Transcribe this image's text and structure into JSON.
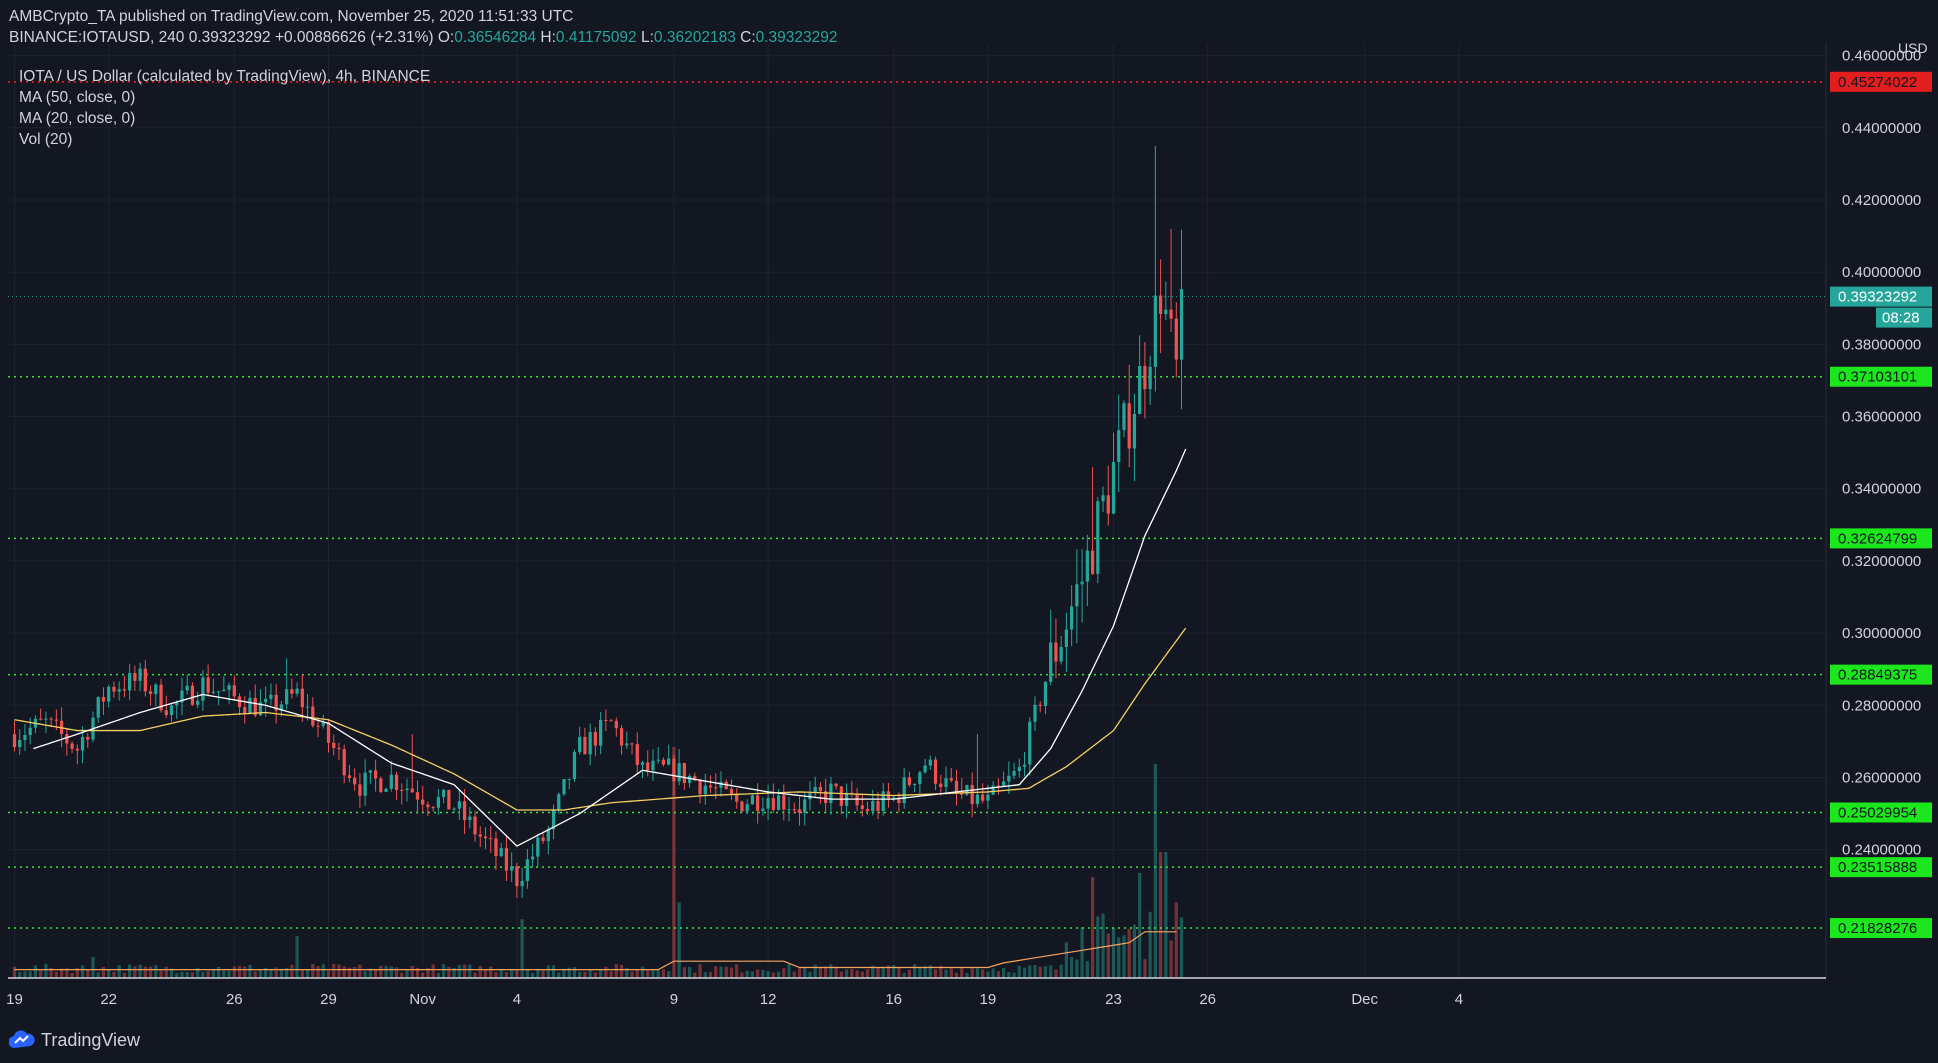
{
  "header": {
    "publisher": "AMBCrypto_TA",
    "published_text": "published on TradingView.com, November 25, 2020 11:51:33 UTC",
    "symbol": "BINANCE:IOTAUSD, 240",
    "change": "0.39323292 +0.00886626 (+2.31%)",
    "o_label": "O:",
    "o": "0.36546284",
    "h_label": "H:",
    "h": "0.41175092",
    "l_label": "L:",
    "l": "0.36202183",
    "c_label": "C:",
    "c": "0.39323292"
  },
  "legend": {
    "title": "IOTA / US Dollar (calculated by TradingView), 4h, BINANCE",
    "ma50": "MA (50, close, 0)",
    "ma20": "MA (20, close, 0)",
    "vol": "Vol (20)"
  },
  "axis": {
    "currency": "USD",
    "countdown": "08:28"
  },
  "footer": {
    "brand": "TradingView"
  },
  "colors": {
    "background": "#131722",
    "up": "#26a69a",
    "down": "#ef5350",
    "ma20": "#ffffff",
    "ma50": "#f5d061",
    "support_line": "#3ee13e",
    "resistance_line": "#ff1f1f",
    "grid": "#1e2230",
    "text": "#d1d4dc"
  },
  "chart_data": {
    "type": "candlestick",
    "title": "IOTA / US Dollar (calculated by TradingView), 4h, BINANCE",
    "y_axis": {
      "min": 0.205,
      "max": 0.461,
      "ticks": [
        "0.46000000",
        "0.44000000",
        "0.42000000",
        "0.40000000",
        "0.38000000",
        "0.36000000",
        "0.34000000",
        "0.32000000",
        "0.30000000",
        "0.28000000",
        "0.26000000",
        "0.24000000"
      ]
    },
    "x_axis": {
      "labels": [
        {
          "text": "19",
          "day": 0
        },
        {
          "text": "22",
          "day": 3
        },
        {
          "text": "26",
          "day": 7
        },
        {
          "text": "29",
          "day": 10
        },
        {
          "text": "Nov",
          "day": 13
        },
        {
          "text": "4",
          "day": 16
        },
        {
          "text": "9",
          "day": 21
        },
        {
          "text": "12",
          "day": 24
        },
        {
          "text": "16",
          "day": 28
        },
        {
          "text": "19",
          "day": 31
        },
        {
          "text": "23",
          "day": 35
        },
        {
          "text": "26",
          "day": 38
        },
        {
          "text": "Dec",
          "day": 43
        },
        {
          "text": "4",
          "day": 46
        }
      ],
      "first_day": "2020-10-19",
      "last_day_shown": "2020-12-05"
    },
    "horizontal_levels": [
      {
        "value": 0.45274022,
        "label": "0.45274022",
        "color": "#ff1f1f",
        "label_bg": "#e31e1e",
        "label_partially_hidden": true
      },
      {
        "value": 0.37103101,
        "label": "0.37103101",
        "color": "#3ee13e",
        "label_bg": "#1ce61c"
      },
      {
        "value": 0.32624799,
        "label": "0.32624799",
        "color": "#3ee13e",
        "label_bg": "#1ce61c"
      },
      {
        "value": 0.28849375,
        "label": "0.28849375",
        "color": "#3ee13e",
        "label_bg": "#1ce61c"
      },
      {
        "value": 0.25029954,
        "label": "0.25029954",
        "color": "#3ee13e",
        "label_bg": "#1ce61c"
      },
      {
        "value": 0.23515888,
        "label": "0.23515888",
        "color": "#3ee13e",
        "label_bg": "#1ce61c"
      },
      {
        "value": 0.21828276,
        "label": "0.21828276",
        "color": "#3ee13e",
        "label_bg": "#1ce61c"
      }
    ],
    "last_price": {
      "value": 0.39323292,
      "label": "0.39323292"
    },
    "close_anchors": [
      [
        0,
        0.272
      ],
      [
        1,
        0.275
      ],
      [
        2,
        0.268
      ],
      [
        3,
        0.285
      ],
      [
        4,
        0.287
      ],
      [
        5,
        0.279
      ],
      [
        6,
        0.286
      ],
      [
        7,
        0.282
      ],
      [
        8,
        0.279
      ],
      [
        9,
        0.283
      ],
      [
        10,
        0.27
      ],
      [
        11,
        0.258
      ],
      [
        12,
        0.26
      ],
      [
        13,
        0.255
      ],
      [
        14,
        0.252
      ],
      [
        15,
        0.242
      ],
      [
        16,
        0.232
      ],
      [
        17,
        0.245
      ],
      [
        18,
        0.268
      ],
      [
        19,
        0.275
      ],
      [
        20,
        0.262
      ],
      [
        21,
        0.262
      ],
      [
        22,
        0.258
      ],
      [
        23,
        0.253
      ],
      [
        24,
        0.255
      ],
      [
        25,
        0.252
      ],
      [
        26,
        0.256
      ],
      [
        27,
        0.251
      ],
      [
        28,
        0.254
      ],
      [
        29,
        0.264
      ],
      [
        30,
        0.255
      ],
      [
        31,
        0.253
      ],
      [
        32,
        0.262
      ],
      [
        33,
        0.292
      ],
      [
        34,
        0.315
      ],
      [
        35,
        0.345
      ],
      [
        36,
        0.375
      ],
      [
        36.5,
        0.395
      ],
      [
        37,
        0.372
      ],
      [
        37.25,
        0.393
      ]
    ],
    "candles_per_day": 6,
    "ma20_anchors": [
      [
        0.6,
        0.268
      ],
      [
        2,
        0.272
      ],
      [
        4,
        0.278
      ],
      [
        6,
        0.283
      ],
      [
        8,
        0.28
      ],
      [
        10,
        0.275
      ],
      [
        12,
        0.264
      ],
      [
        14,
        0.258
      ],
      [
        16,
        0.241
      ],
      [
        18,
        0.25
      ],
      [
        20,
        0.262
      ],
      [
        22,
        0.259
      ],
      [
        24,
        0.256
      ],
      [
        26,
        0.254
      ],
      [
        28,
        0.254
      ],
      [
        30,
        0.256
      ],
      [
        32,
        0.258
      ],
      [
        33,
        0.268
      ],
      [
        34,
        0.284
      ],
      [
        35,
        0.302
      ],
      [
        36,
        0.327
      ],
      [
        37,
        0.345
      ],
      [
        37.35,
        0.352
      ]
    ],
    "ma50_anchors": [
      [
        0,
        0.276
      ],
      [
        2,
        0.273
      ],
      [
        4,
        0.273
      ],
      [
        6,
        0.277
      ],
      [
        8,
        0.278
      ],
      [
        10,
        0.276
      ],
      [
        12,
        0.269
      ],
      [
        14,
        0.261
      ],
      [
        16,
        0.251
      ],
      [
        17.5,
        0.251
      ],
      [
        19,
        0.253
      ],
      [
        22,
        0.255
      ],
      [
        25,
        0.256
      ],
      [
        28,
        0.255
      ],
      [
        31,
        0.256
      ],
      [
        32.3,
        0.257
      ],
      [
        33.5,
        0.263
      ],
      [
        35,
        0.273
      ],
      [
        36,
        0.286
      ],
      [
        37.35,
        0.302
      ]
    ],
    "volume": {
      "baseline_note": "Vol (20) histogram with 20-period volume MA",
      "spikes": [
        [
          2.5,
          0.05
        ],
        [
          9.0,
          0.1
        ],
        [
          16.1,
          0.14
        ],
        [
          21.0,
          0.55
        ],
        [
          21.2,
          0.18
        ],
        [
          34.3,
          0.24
        ],
        [
          35.0,
          0.12
        ],
        [
          35.9,
          0.25
        ],
        [
          36.3,
          0.51
        ],
        [
          36.6,
          0.3
        ],
        [
          37.0,
          0.18
        ],
        [
          37.3,
          0.18
        ]
      ]
    }
  }
}
